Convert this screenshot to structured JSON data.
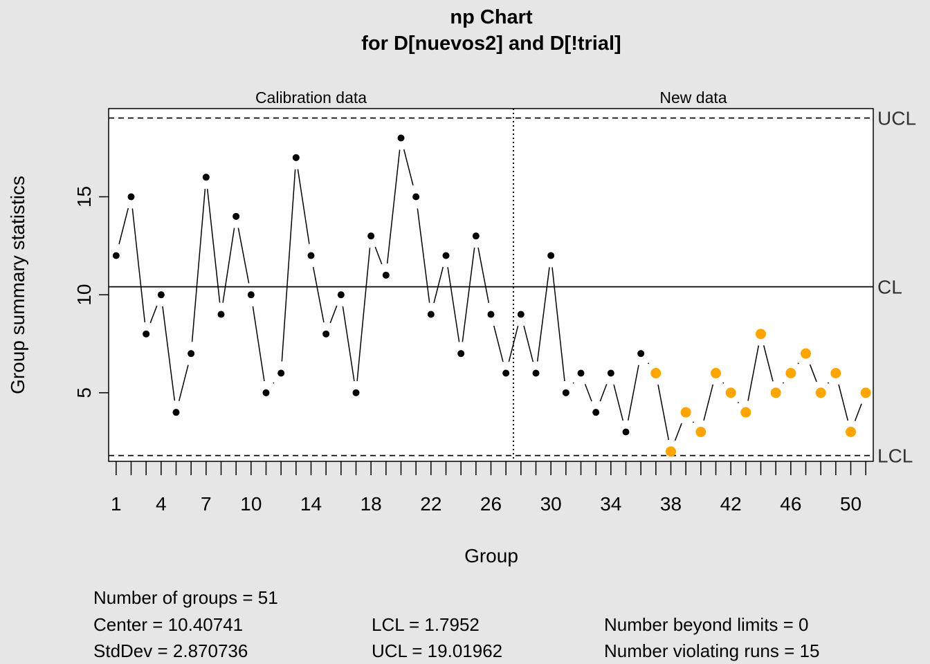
{
  "chart_data": {
    "type": "line",
    "title": "np Chart",
    "subtitle": "for D[nuevos2] and D[!trial]",
    "xlabel": "Group",
    "ylabel": "Group summary statistics",
    "x_tick_labels": [
      "1",
      "4",
      "7",
      "10",
      "14",
      "18",
      "22",
      "26",
      "30",
      "34",
      "38",
      "42",
      "46",
      "50"
    ],
    "x_tick_positions": [
      1,
      4,
      7,
      10,
      14,
      18,
      22,
      26,
      30,
      34,
      38,
      42,
      46,
      50
    ],
    "y_ticks": [
      5,
      10,
      15
    ],
    "xlim": [
      0.5,
      51.5
    ],
    "ylim": [
      1.5,
      19.5
    ],
    "sections": [
      {
        "label": "Calibration data",
        "from": 1,
        "to": 27
      },
      {
        "label": "New data",
        "from": 28,
        "to": 51
      }
    ],
    "divider_after_group": 27,
    "limits": {
      "UCL": {
        "label": "UCL",
        "value": 19.01962
      },
      "CL": {
        "label": "CL",
        "value": 10.40741
      },
      "LCL": {
        "label": "LCL",
        "value": 1.7952
      }
    },
    "series": [
      {
        "x": [
          1,
          2,
          3,
          4,
          5,
          6,
          7,
          8,
          9,
          10,
          11,
          12,
          13,
          14,
          15,
          16,
          17,
          18,
          19,
          20,
          21,
          22,
          23,
          24,
          25,
          26,
          27,
          28,
          29,
          30,
          31,
          32,
          33,
          34,
          35,
          36,
          37,
          38,
          39,
          40,
          41,
          42,
          43,
          44,
          45,
          46,
          47,
          48,
          49,
          50,
          51
        ],
        "values": [
          12,
          15,
          8,
          10,
          4,
          7,
          16,
          9,
          14,
          10,
          5,
          6,
          17,
          12,
          8,
          10,
          5,
          13,
          11,
          18,
          15,
          9,
          12,
          7,
          13,
          9,
          6,
          9,
          6,
          12,
          5,
          6,
          4,
          6,
          3,
          7,
          6,
          2,
          4,
          3,
          6,
          5,
          4,
          8,
          5,
          6,
          7,
          5,
          6,
          3,
          5
        ],
        "violating": [
          37,
          38,
          39,
          40,
          41,
          42,
          43,
          44,
          45,
          46,
          47,
          48,
          49,
          50,
          51
        ],
        "point_color": "#000000",
        "violating_color": "#ffa500"
      }
    ]
  },
  "stats": {
    "groups": "Number of groups = 51",
    "center": "Center = 10.40741",
    "stddev": "StdDev = 2.870736",
    "lcl": "LCL = 1.7952",
    "ucl": "UCL = 19.01962",
    "beyond": "Number beyond limits = 0",
    "violating": "Number violating runs = 15"
  }
}
